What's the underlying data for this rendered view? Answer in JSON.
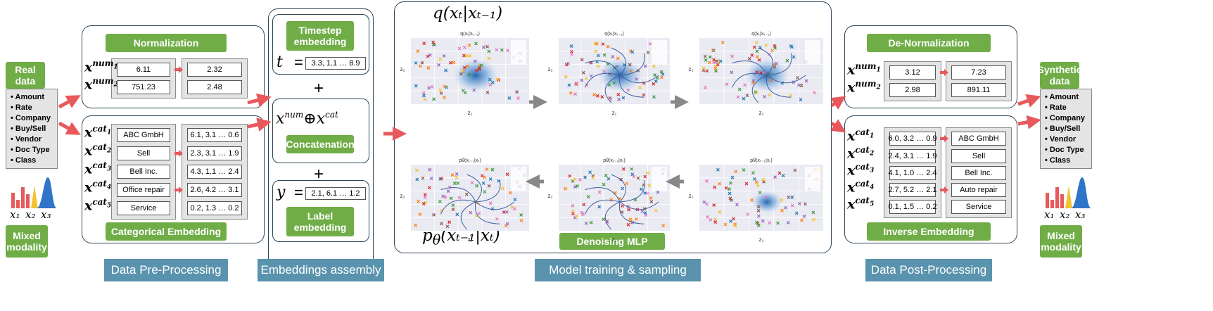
{
  "left": {
    "title": "Real data",
    "features": [
      "Amount",
      "Rate",
      "Company",
      "Buy/Sell",
      "Vendor",
      "Doc Type",
      "Class"
    ],
    "axis_labels": [
      "x₁",
      "x₂",
      "x₃"
    ],
    "caption": "Mixed modality"
  },
  "preprocessing": {
    "normalization": {
      "title": "Normalization",
      "rows": [
        {
          "var": {
            "base": "x",
            "sup": "num",
            "sub": "1"
          },
          "input": 6.11,
          "output": 2.32
        },
        {
          "var": {
            "base": "x",
            "sup": "num",
            "sub": "2"
          },
          "input": 751.23,
          "output": 2.48
        }
      ]
    },
    "embedding": {
      "title": "Categorical Embedding",
      "rows": [
        {
          "var": {
            "base": "x",
            "sup": "cat",
            "sub": "1"
          },
          "input": "ABC GmbH",
          "output": "6.1, 3.1 … 0.6"
        },
        {
          "var": {
            "base": "x",
            "sup": "cat",
            "sub": "2"
          },
          "input": "Sell",
          "output": "2.3, 3.1 … 1.9"
        },
        {
          "var": {
            "base": "x",
            "sup": "cat",
            "sub": "3"
          },
          "input": "Bell Inc.",
          "output": "4.3, 1.1 … 2.4"
        },
        {
          "var": {
            "base": "x",
            "sup": "cat",
            "sub": "4"
          },
          "input": "Office repair",
          "output": "2.6, 4.2 … 3.1"
        },
        {
          "var": {
            "base": "x",
            "sup": "cat",
            "sub": "5"
          },
          "input": "Service",
          "output": "0.2, 1.3 … 0.2"
        }
      ]
    },
    "footer": "Data Pre-Processing"
  },
  "assembly": {
    "timestep": {
      "title": "Timestep embedding",
      "symbol": "t",
      "equals": "=",
      "vector": "3.3, 1.1 … 8.9"
    },
    "plus": "+",
    "concat": {
      "left": {
        "base": "x",
        "sup": "num"
      },
      "op": "⊕",
      "right": {
        "base": "x",
        "sup": "cat"
      },
      "title": "Concatenation"
    },
    "label": {
      "title": "Label embedding",
      "symbol": "y",
      "equals": "=",
      "vector": "2.1, 6.1 … 1.2"
    },
    "footer": "Embeddings assembly"
  },
  "model": {
    "forward": "q(xₜ|xₜ₋₁)",
    "reverse": {
      "p": "p",
      "sub": "θ",
      "rest": "(xₜ₋₁|xₜ)"
    },
    "plots": [
      {
        "title": "q(xₜ|xₜ₋₁)"
      },
      {
        "title": "q(xₜ|xₜ₋₁)"
      },
      {
        "title": "q(xₜ|xₜ₋₁)"
      },
      {
        "title": "pθ(xₜ₋₁|xₜ)"
      },
      {
        "title": "pθ(xₜ₋₁|xₜ)"
      },
      {
        "title": "pθ(xₜ₋₁|xₜ)"
      }
    ],
    "axis_x": "z₁",
    "axis_y": "z₂",
    "network": "Denoising MLP",
    "footer": "Model training & sampling"
  },
  "postprocessing": {
    "normalization": {
      "title": "De-Normalization",
      "rows": [
        {
          "var": {
            "base": "x",
            "sup": "num",
            "sub": "1"
          },
          "input": 3.12,
          "output": 7.23
        },
        {
          "var": {
            "base": "x",
            "sup": "num",
            "sub": "2"
          },
          "input": 2.98,
          "output": 891.11
        }
      ]
    },
    "embedding": {
      "title": "Inverse Embedding",
      "rows": [
        {
          "var": {
            "base": "x",
            "sup": "cat",
            "sub": "1"
          },
          "input": "6.0, 3.2 … 0.9",
          "output": "ABC GmbH"
        },
        {
          "var": {
            "base": "x",
            "sup": "cat",
            "sub": "2"
          },
          "input": "2.4, 3.1 … 1.9",
          "output": "Sell"
        },
        {
          "var": {
            "base": "x",
            "sup": "cat",
            "sub": "3"
          },
          "input": "4.1, 1.0 … 2.4",
          "output": "Bell Inc."
        },
        {
          "var": {
            "base": "x",
            "sup": "cat",
            "sub": "4"
          },
          "input": "2.7, 5.2 … 2.1",
          "output": "Auto repair"
        },
        {
          "var": {
            "base": "x",
            "sup": "cat",
            "sub": "5"
          },
          "input": "0.1, 1.5 … 0.2",
          "output": "Service"
        }
      ]
    },
    "footer": "Data Post-Processing"
  },
  "right": {
    "title": "Synthetic data",
    "features": [
      "Amount",
      "Rate",
      "Company",
      "Buy/Sell",
      "Vendor",
      "Doc Type",
      "Class"
    ],
    "axis_labels": [
      "x₁",
      "x₂",
      "x₃"
    ],
    "caption": "Mixed modality"
  }
}
